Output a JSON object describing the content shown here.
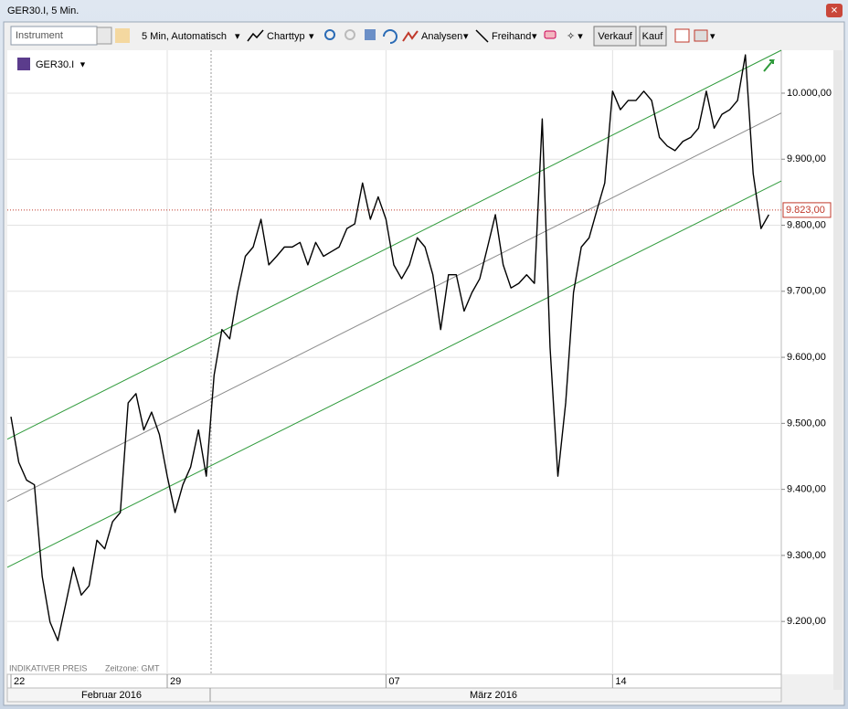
{
  "window": {
    "title": "GER30.I, 5 Min."
  },
  "toolbar": {
    "instrument": "Instrument",
    "interval": "5 Min, Automatisch",
    "chart_type": "Charttyp",
    "analyses": "Analysen",
    "freehand": "Freihand",
    "sell": "Verkauf",
    "buy": "Kauf"
  },
  "chart_data": {
    "type": "line",
    "instrument": "GER30.I",
    "notes": [
      "INDIKATIVER PREIS",
      "Zeitzone: GMT"
    ],
    "months": [
      "Februar 2016",
      "März 2016"
    ],
    "categories": [
      "22",
      null,
      null,
      null,
      null,
      null,
      null,
      null,
      null,
      null,
      null,
      null,
      null,
      null,
      null,
      null,
      null,
      null,
      null,
      null,
      "29",
      null,
      null,
      null,
      null,
      null,
      null,
      null,
      null,
      null,
      null,
      null,
      null,
      null,
      null,
      null,
      null,
      null,
      null,
      null,
      null,
      null,
      null,
      null,
      null,
      null,
      null,
      null,
      "07",
      null,
      null,
      null,
      null,
      null,
      null,
      null,
      null,
      null,
      null,
      null,
      null,
      null,
      null,
      null,
      null,
      null,
      null,
      null,
      null,
      null,
      null,
      null,
      null,
      null,
      null,
      null,
      null,
      "14",
      null,
      null,
      null,
      null,
      null,
      null,
      null,
      null,
      null,
      null,
      null,
      null,
      null,
      null,
      null,
      null,
      null,
      null,
      null,
      null
    ],
    "series": [
      {
        "color": "#000000",
        "values": [
          9510,
          9441,
          9414,
          9407,
          9268,
          9199,
          9171,
          9226,
          9282,
          9240,
          9254,
          9323,
          9310,
          9351,
          9365,
          9531,
          9545,
          9490,
          9517,
          9483,
          9420,
          9365,
          9407,
          9434,
          9490,
          9420,
          9573,
          9642,
          9628,
          9698,
          9753,
          9767,
          9809,
          9740,
          9753,
          9767,
          9767,
          9774,
          9740,
          9774,
          9753,
          9760,
          9767,
          9795,
          9802,
          9864,
          9809,
          9843,
          9809,
          9740,
          9719,
          9740,
          9781,
          9767,
          9725,
          9642,
          9725,
          9725,
          9670,
          9698,
          9719,
          9767,
          9816,
          9740,
          9705,
          9712,
          9725,
          9712,
          9961,
          9615,
          9420,
          9531,
          9698,
          9767,
          9781,
          9823,
          9864,
          10003,
          9975,
          9989,
          9989,
          10003,
          9989,
          9933,
          9920,
          9913,
          9927,
          9933,
          9947,
          10003,
          9947,
          9968,
          9975,
          9989,
          10058,
          9878,
          9795,
          9816
        ]
      }
    ],
    "channel_lines": [
      {
        "color": "#2e9a3a",
        "start": 9476,
        "end": 10065
      },
      {
        "color": "#8c8c8c",
        "start": 9382,
        "end": 9970
      },
      {
        "color": "#2e9a3a",
        "start": 9282,
        "end": 9867
      }
    ],
    "price_line": {
      "value": 9823,
      "label": "9.823,00",
      "color": "#c0392b"
    },
    "ylim": [
      9120,
      10065
    ],
    "yticks": [
      {
        "value": 9200,
        "label": "9.200,00"
      },
      {
        "value": 9300,
        "label": "9.300,00"
      },
      {
        "value": 9400,
        "label": "9.400,00"
      },
      {
        "value": 9500,
        "label": "9.500,00"
      },
      {
        "value": 9600,
        "label": "9.600,00"
      },
      {
        "value": 9700,
        "label": "9.700,00"
      },
      {
        "value": 9800,
        "label": "9.800,00"
      },
      {
        "value": 9900,
        "label": "9.900,00"
      },
      {
        "value": 10000,
        "label": "10.000,00"
      }
    ],
    "grid": true
  }
}
